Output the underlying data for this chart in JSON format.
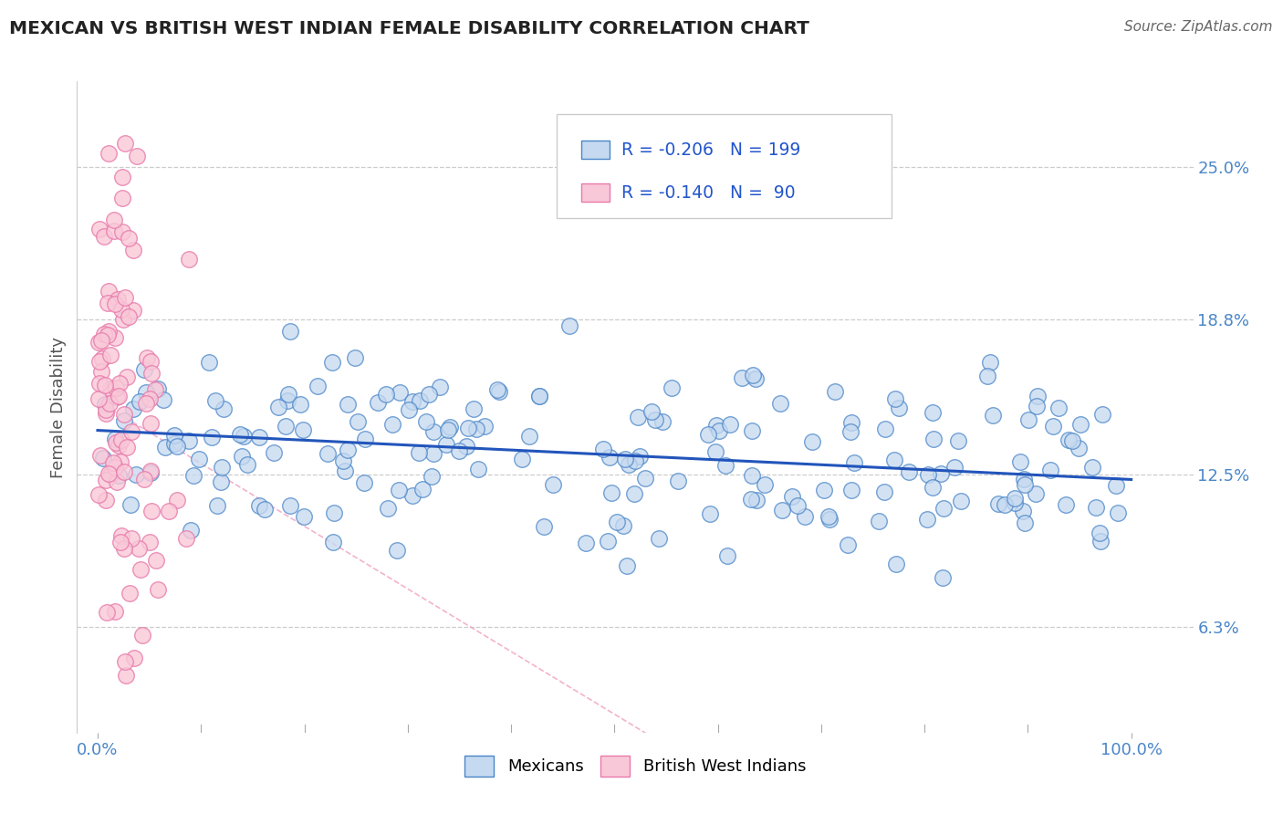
{
  "title": "MEXICAN VS BRITISH WEST INDIAN FEMALE DISABILITY CORRELATION CHART",
  "source": "Source: ZipAtlas.com",
  "ylabel": "Female Disability",
  "r_blue": -0.206,
  "n_blue": 199,
  "r_pink": -0.14,
  "n_pink": 90,
  "ytick_labels": [
    "6.3%",
    "12.5%",
    "18.8%",
    "25.0%"
  ],
  "ytick_values": [
    0.063,
    0.125,
    0.188,
    0.25
  ],
  "xtick_labels": [
    "0.0%",
    "100.0%"
  ],
  "xtick_values": [
    0.0,
    1.0
  ],
  "xlim": [
    -0.02,
    1.06
  ],
  "ylim": [
    0.02,
    0.285
  ],
  "blue_fill": "#c5d9f0",
  "blue_edge": "#4a86c8",
  "pink_fill": "#f9c8d8",
  "pink_edge": "#e87aaa",
  "blue_line_color": "#2255bb",
  "pink_line_color": "#f0a0c0",
  "title_color": "#222222",
  "tick_color": "#4a86c8",
  "source_color": "#666666",
  "ylabel_color": "#555555",
  "grid_color": "#cccccc",
  "legend_r_color": "#2255cc",
  "background_color": "#ffffff",
  "seed": 42
}
